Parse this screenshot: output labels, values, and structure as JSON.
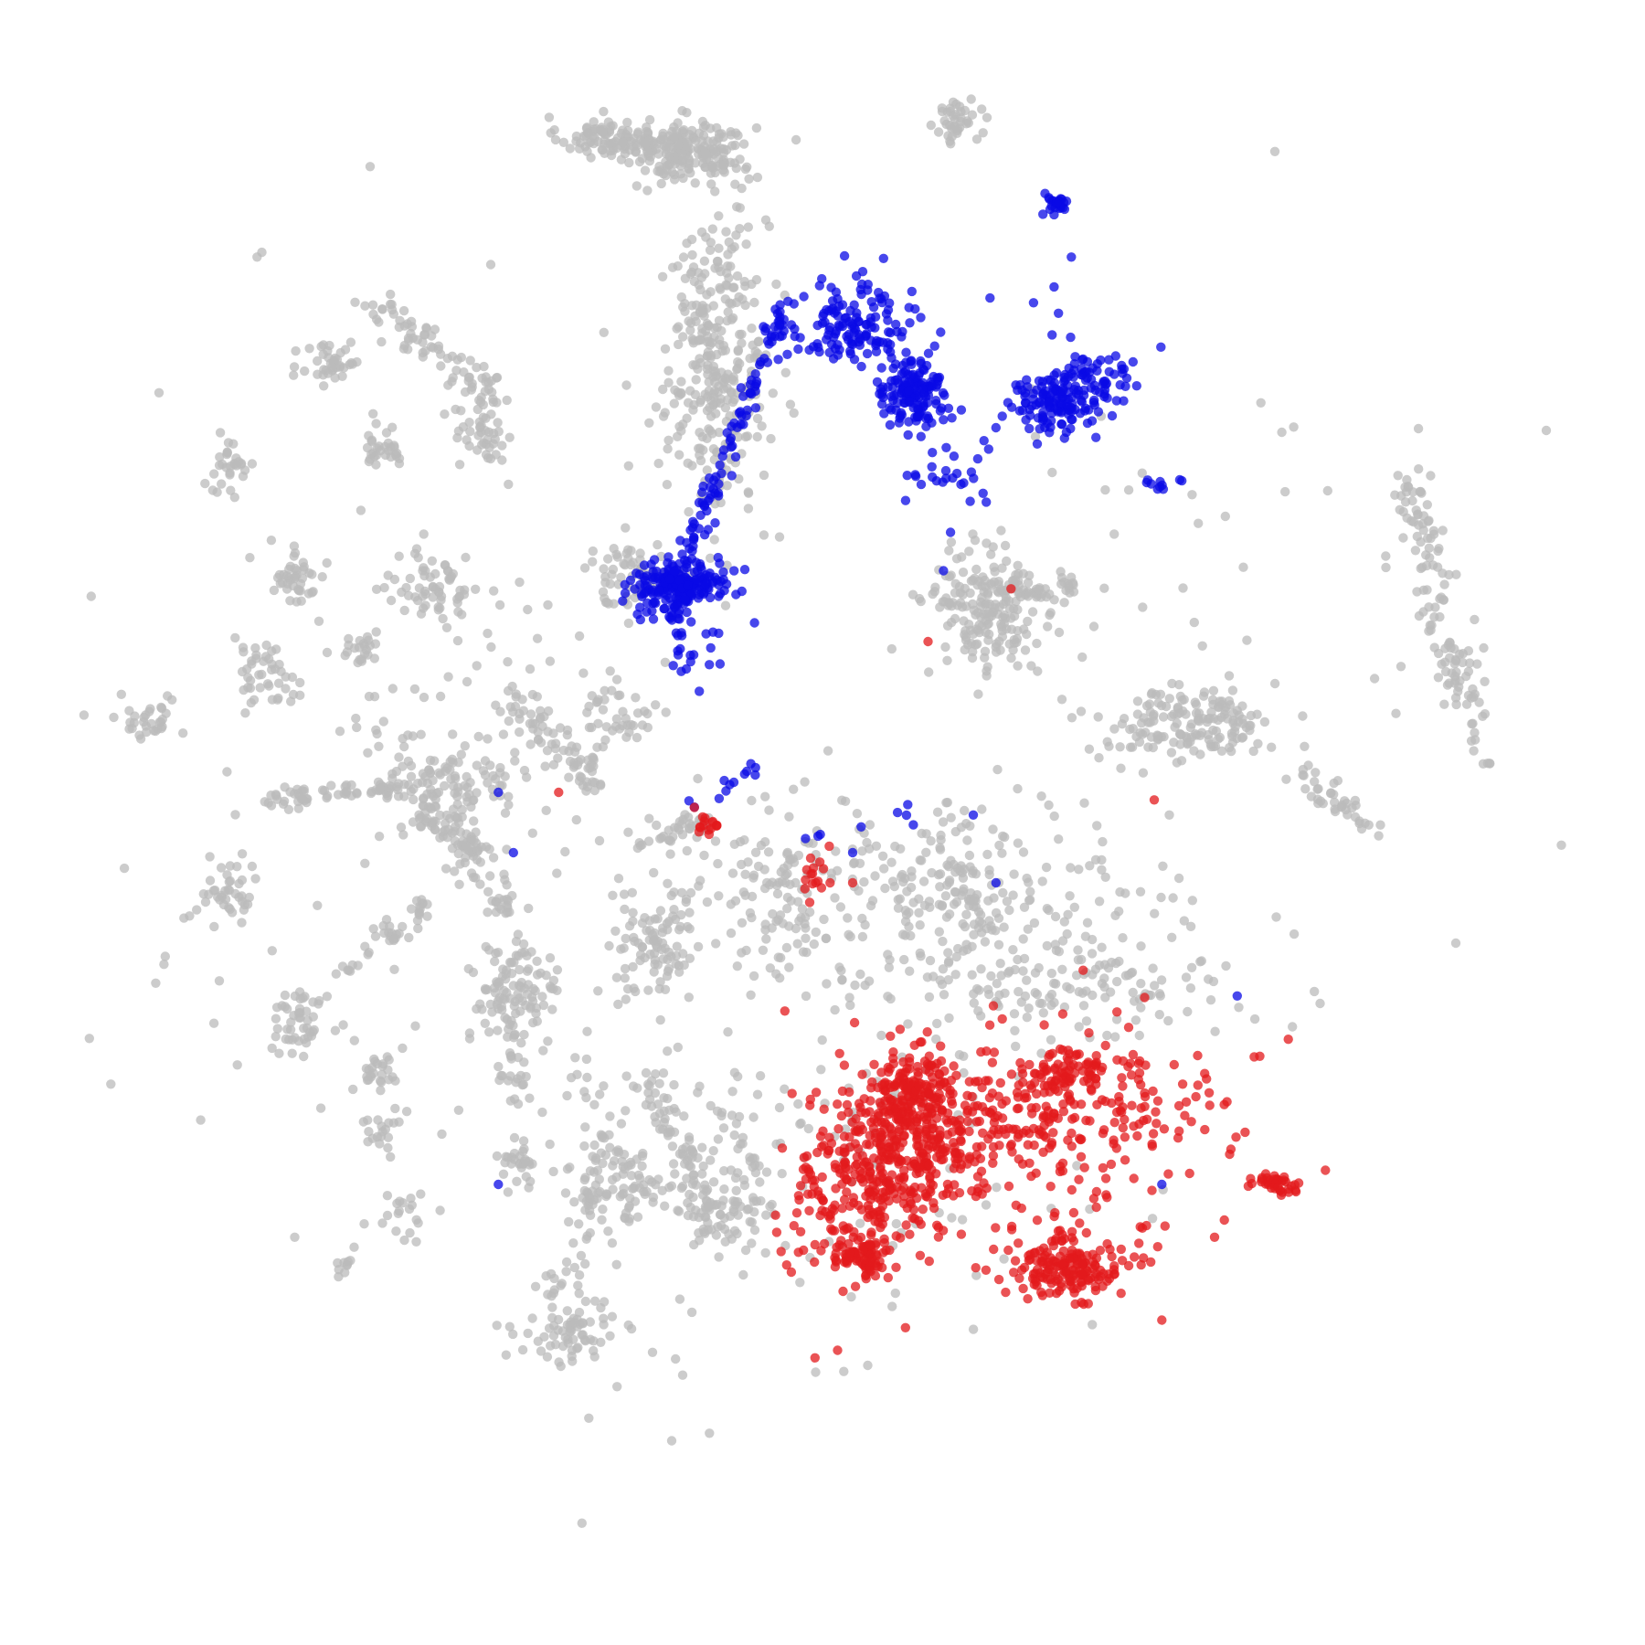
{
  "chart_data": {
    "type": "scatter",
    "title": "",
    "xlabel": "",
    "ylabel": "",
    "xlim": [
      -100,
      100
    ],
    "ylim": [
      -100,
      100
    ],
    "grid": false,
    "axes_visible": false,
    "legend": "none",
    "point_opacity": 0.75,
    "colors": {
      "background": "#bbbbbb",
      "red": "#e31a1c",
      "blue": "#0a0ae6"
    },
    "clusters": [
      {
        "group": "background",
        "x": -29,
        "y": 91,
        "sx": 3,
        "sy": 1.3,
        "n": 80
      },
      {
        "group": "background",
        "x": -18,
        "y": 89,
        "sx": 4.5,
        "sy": 2,
        "n": 180
      },
      {
        "group": "background",
        "x": 18,
        "y": 93,
        "sx": 1.5,
        "sy": 1.5,
        "n": 40
      },
      {
        "group": "background",
        "x": -65,
        "y": 61,
        "sx": 2,
        "sy": 2,
        "n": 40
      },
      {
        "group": "background",
        "x": -79,
        "y": 47,
        "sx": 1.8,
        "sy": 1.8,
        "n": 30
      },
      {
        "group": "background",
        "x": -58,
        "y": 50,
        "sx": 1.5,
        "sy": 1.5,
        "n": 30
      },
      {
        "group": "background",
        "x": -45,
        "y": 51,
        "sx": 2,
        "sy": 2,
        "n": 40
      },
      {
        "group": "background",
        "x": -70,
        "y": 33,
        "sx": 2.2,
        "sy": 2,
        "n": 40
      },
      {
        "group": "background",
        "x": -51,
        "y": 31,
        "sx": 2.8,
        "sy": 2.4,
        "n": 60
      },
      {
        "group": "background",
        "x": -25,
        "y": 33,
        "sx": 3.5,
        "sy": 2,
        "n": 60
      },
      {
        "group": "background",
        "x": -74,
        "y": 20,
        "sx": 2.2,
        "sy": 2,
        "n": 40
      },
      {
        "group": "background",
        "x": -61,
        "y": 22,
        "sx": 1.3,
        "sy": 1.3,
        "n": 20
      },
      {
        "group": "background",
        "x": -89,
        "y": 14,
        "sx": 1.8,
        "sy": 1.8,
        "n": 30
      },
      {
        "group": "background",
        "x": -27,
        "y": 14,
        "sx": 2.2,
        "sy": 2.2,
        "n": 40
      },
      {
        "group": "background",
        "x": -14,
        "y": 61,
        "sx": 3.5,
        "sy": 10,
        "n": 320
      },
      {
        "group": "background",
        "x": -50,
        "y": 5,
        "sx": 4,
        "sy": 3,
        "n": 110
      },
      {
        "group": "background",
        "x": -79,
        "y": -9,
        "sx": 2,
        "sy": 2,
        "n": 40
      },
      {
        "group": "background",
        "x": -42,
        "y": -10,
        "sx": 1.2,
        "sy": 1.2,
        "n": 20
      },
      {
        "group": "background",
        "x": -22,
        "y": -16,
        "sx": 3,
        "sy": 4,
        "n": 90
      },
      {
        "group": "background",
        "x": -41,
        "y": -23,
        "sx": 3,
        "sy": 3.5,
        "n": 110
      },
      {
        "group": "background",
        "x": -69,
        "y": -26,
        "sx": 2.2,
        "sy": 2.2,
        "n": 50
      },
      {
        "group": "background",
        "x": -40,
        "y": -45,
        "sx": 1.6,
        "sy": 1.6,
        "n": 30
      },
      {
        "group": "background",
        "x": -55,
        "y": -52,
        "sx": 1.4,
        "sy": 1.4,
        "n": 20
      },
      {
        "group": "background",
        "x": -31,
        "y": -50,
        "sx": 1.4,
        "sy": 1.4,
        "n": 20
      },
      {
        "group": "background",
        "x": -34,
        "y": -68,
        "sx": 3.5,
        "sy": 2,
        "n": 60
      },
      {
        "group": "background",
        "x": -26,
        "y": -48,
        "sx": 3,
        "sy": 2.5,
        "n": 60
      },
      {
        "group": "background",
        "x": -14,
        "y": -52,
        "sx": 3,
        "sy": 2.5,
        "n": 60
      },
      {
        "group": "background",
        "x": 22,
        "y": 28,
        "sx": 4,
        "sy": 5,
        "n": 180
      },
      {
        "group": "background",
        "x": 48,
        "y": 13,
        "sx": 6,
        "sy": 2.5,
        "n": 160
      },
      {
        "group": "background",
        "x": -17,
        "y": -0.5,
        "sx": 2,
        "sy": 1,
        "n": 25
      },
      {
        "group": "background",
        "x": -47,
        "y": -6,
        "sx": 1.2,
        "sy": 1.2,
        "n": 15
      },
      {
        "group": "background",
        "x": -7,
        "y": -8,
        "sx": 3.5,
        "sy": 6,
        "n": 60
      },
      {
        "group": "background",
        "x": 16,
        "y": -10,
        "sx": 14,
        "sy": 6,
        "n": 260
      },
      {
        "group": "background",
        "x": 34,
        "y": -21,
        "sx": 12,
        "sy": 4,
        "n": 140
      },
      {
        "group": "background",
        "x": -21,
        "y": -2,
        "sx": 1.5,
        "sy": 1.2,
        "n": 15
      },
      {
        "group": "background",
        "x": -59,
        "y": -33,
        "sx": 1.5,
        "sy": 1.5,
        "n": 25
      },
      {
        "group": "background",
        "x": -58,
        "y": -41,
        "sx": 1.5,
        "sy": 1.5,
        "n": 20
      },
      {
        "group": "background",
        "x": -64,
        "y": -58,
        "sx": 1,
        "sy": 1,
        "n": 10
      },
      {
        "group": "background",
        "x": -36,
        "y": -62,
        "sx": 1,
        "sy": 1,
        "n": 10
      },
      {
        "group": "background",
        "x": -2,
        "y": -40,
        "sx": 18,
        "sy": 18,
        "n": 120
      },
      {
        "group": "background",
        "x": -43,
        "y": 21,
        "sx": 14,
        "sy": 14,
        "n": 80
      },
      {
        "group": "background",
        "x": 50,
        "y": 30,
        "sx": 20,
        "sy": 16,
        "n": 40
      },
      {
        "group": "background",
        "x": -65,
        "y": 0,
        "sx": 30,
        "sy": 30,
        "n": 60
      }
    ],
    "lines": [
      {
        "group": "background",
        "from": [
          -24,
          91
        ],
        "to": [
          -13,
          88
        ],
        "n": 40,
        "sd": 1
      },
      {
        "group": "background",
        "from": [
          -59,
          68
        ],
        "to": [
          -43,
          56
        ],
        "n": 80,
        "sd": 1.2
      },
      {
        "group": "background",
        "from": [
          -41,
          17
        ],
        "to": [
          -30,
          5
        ],
        "n": 70,
        "sd": 1.2
      },
      {
        "group": "background",
        "from": [
          -74,
          3
        ],
        "to": [
          -55,
          5
        ],
        "n": 60,
        "sd": 0.6
      },
      {
        "group": "background",
        "from": [
          -53,
          1
        ],
        "to": [
          -44,
          -4
        ],
        "n": 60,
        "sd": 1.2
      },
      {
        "group": "background",
        "from": [
          -30,
          -32
        ],
        "to": [
          -30,
          -66
        ],
        "n": 60,
        "sd": 2.4
      },
      {
        "group": "background",
        "from": [
          -12,
          -35
        ],
        "to": [
          -9,
          -53
        ],
        "n": 40,
        "sd": 2.4
      },
      {
        "group": "background",
        "from": [
          -24,
          -33
        ],
        "to": [
          -14,
          -52
        ],
        "n": 70,
        "sd": 1.2
      },
      {
        "group": "background",
        "from": [
          -64,
          -21
        ],
        "to": [
          -52,
          -10
        ],
        "n": 40,
        "sd": 1
      },
      {
        "group": "background",
        "from": [
          -41,
          -30
        ],
        "to": [
          -41,
          -38
        ],
        "n": 20,
        "sd": 0.8
      },
      {
        "group": "background",
        "from": [
          13,
          30
        ],
        "to": [
          25,
          25
        ],
        "n": 15,
        "sd": 1
      },
      {
        "group": "background",
        "from": [
          25,
          31
        ],
        "to": [
          35,
          31
        ],
        "n": 35,
        "sd": 0.8
      },
      {
        "group": "background",
        "from": [
          77,
          47
        ],
        "to": [
          88,
          8
        ],
        "n": 130,
        "sd": 1.4
      },
      {
        "group": "background",
        "from": [
          63,
          6
        ],
        "to": [
          73,
          0
        ],
        "n": 40,
        "sd": 1
      },
      {
        "group": "background",
        "from": [
          16,
          -4
        ],
        "to": [
          21,
          -14
        ],
        "n": 30,
        "sd": 1
      },
      {
        "group": "background",
        "from": [
          -4,
          -4
        ],
        "to": [
          -3,
          -15
        ],
        "n": 20,
        "sd": 1.2
      },
      {
        "group": "background",
        "from": [
          8,
          -40
        ],
        "to": [
          -2,
          -38
        ],
        "n": 15,
        "sd": 2.6
      },
      {
        "group": "blue",
        "from": [
          -18,
          35
        ],
        "to": [
          -5,
          69
        ],
        "n": 100,
        "sd": 0.7
      },
      {
        "group": "blue",
        "from": [
          -6,
          67
        ],
        "to": [
          5,
          64
        ],
        "n": 10,
        "sd": 2
      },
      {
        "group": "blue",
        "from": [
          -8,
          8
        ],
        "to": [
          -17,
          2
        ],
        "n": 12,
        "sd": 0.6
      },
      {
        "group": "blue",
        "from": [
          10,
          46
        ],
        "to": [
          22,
          45
        ],
        "n": 10,
        "sd": 0.5
      },
      {
        "group": "blue",
        "from": [
          42,
          45
        ],
        "to": [
          48,
          45
        ],
        "n": 10,
        "sd": 0.5
      },
      {
        "group": "blue",
        "from": [
          -2,
          -1
        ],
        "to": [
          13,
          2
        ],
        "n": 8,
        "sd": 1
      },
      {
        "group": "blue",
        "from": [
          6,
          74
        ],
        "to": [
          19,
          42
        ],
        "n": 30,
        "sd": 1.2
      },
      {
        "group": "red",
        "from": [
          10,
          -38
        ],
        "to": [
          52,
          -38
        ],
        "n": 90,
        "sd": 3
      },
      {
        "group": "red",
        "from": [
          2,
          -40
        ],
        "to": [
          -2,
          -58
        ],
        "n": 50,
        "sd": 2.5
      },
      {
        "group": "red",
        "from": [
          44,
          -55
        ],
        "to": [
          27,
          -55
        ],
        "n": 40,
        "sd": 3
      }
    ],
    "blue_clusters": [
      {
        "x": -20,
        "y": 31,
        "sx": 2.5,
        "sy": 1.8,
        "n": 180
      },
      {
        "x": -15,
        "y": 32,
        "sx": 2,
        "sy": 1.2,
        "n": 40
      },
      {
        "x": 31,
        "y": 82,
        "sx": 0.8,
        "sy": 0.8,
        "n": 25
      },
      {
        "x": 12,
        "y": 57,
        "sx": 2.2,
        "sy": 2,
        "n": 140
      },
      {
        "x": 4,
        "y": 66,
        "sx": 4,
        "sy": 3,
        "n": 120
      },
      {
        "x": 31,
        "y": 56,
        "sx": 2.5,
        "sy": 2.2,
        "n": 120
      },
      {
        "x": 36,
        "y": 58,
        "sx": 3,
        "sy": 2,
        "n": 60
      },
      {
        "x": -17,
        "y": 24,
        "sx": 3,
        "sy": 3,
        "n": 30
      },
      {
        "x": 18,
        "y": 48,
        "sx": 6,
        "sy": 6,
        "n": 12
      },
      {
        "x": 32,
        "y": 62,
        "sx": 6,
        "sy": 6,
        "n": 12
      }
    ],
    "red_clusters": [
      {
        "x": 11,
        "y": -35,
        "sx": 2.5,
        "sy": 2.5,
        "n": 120
      },
      {
        "x": 33,
        "y": -33,
        "sx": 3,
        "sy": 1.5,
        "n": 70
      },
      {
        "x": 11,
        "y": -44,
        "sx": 5,
        "sy": 5,
        "n": 300
      },
      {
        "x": 27,
        "y": -39,
        "sx": 12,
        "sy": 6,
        "n": 240
      },
      {
        "x": 5,
        "y": -58,
        "sx": 1.8,
        "sy": 1.8,
        "n": 80
      },
      {
        "x": 32,
        "y": -59,
        "sx": 4,
        "sy": 2,
        "n": 150
      },
      {
        "x": 60,
        "y": -48,
        "sx": 1.6,
        "sy": 0.8,
        "n": 40
      },
      {
        "x": 5,
        "y": -49,
        "sx": 4,
        "sy": 5,
        "n": 80
      },
      {
        "x": -15,
        "y": -0.5,
        "sx": 0.8,
        "sy": 0.5,
        "n": 15
      },
      {
        "x": -1,
        "y": -6,
        "sx": 1.2,
        "sy": 2,
        "n": 15
      }
    ],
    "single_points": [
      {
        "group": "background",
        "x": -75,
        "y": 75
      },
      {
        "group": "background",
        "x": -62,
        "y": 69
      },
      {
        "group": "background",
        "x": -88,
        "y": 57
      },
      {
        "group": "background",
        "x": -97,
        "y": 30
      },
      {
        "group": "background",
        "x": -93,
        "y": 17
      },
      {
        "group": "background",
        "x": -29,
        "y": 65
      },
      {
        "group": "background",
        "x": -26,
        "y": 58
      },
      {
        "group": "background",
        "x": -23,
        "y": 53
      },
      {
        "group": "background",
        "x": -60,
        "y": 87
      },
      {
        "group": "background",
        "x": -44,
        "y": 74
      },
      {
        "group": "background",
        "x": -80,
        "y": -21
      },
      {
        "group": "background",
        "x": -70,
        "y": -55
      },
      {
        "group": "background",
        "x": -31,
        "y": -79
      },
      {
        "group": "background",
        "x": -20,
        "y": -82
      },
      {
        "group": "background",
        "x": -15,
        "y": -81
      },
      {
        "group": "background",
        "x": 6,
        "y": -72
      },
      {
        "group": "background",
        "x": 60,
        "y": 89
      },
      {
        "group": "background",
        "x": 67,
        "y": 44
      },
      {
        "group": "background",
        "x": 96,
        "y": 52
      },
      {
        "group": "background",
        "x": 84,
        "y": -16
      },
      {
        "group": "background",
        "x": 98,
        "y": -3
      },
      {
        "group": "background",
        "x": 66,
        "y": -24
      },
      {
        "group": "background",
        "x": 36,
        "y": 26
      },
      {
        "group": "background",
        "x": 20,
        "y": 25
      },
      {
        "group": "background",
        "x": 46,
        "y": 1
      },
      {
        "group": "background",
        "x": -67,
        "y": -11
      },
      {
        "group": "background",
        "x": -73,
        "y": -17
      },
      {
        "group": "background",
        "x": -3,
        "y": -61
      },
      {
        "group": "background",
        "x": -3,
        "y": -40
      },
      {
        "group": "blue",
        "x": 33,
        "y": 75
      },
      {
        "group": "blue",
        "x": -43,
        "y": 4
      },
      {
        "group": "blue",
        "x": -41,
        "y": -4
      },
      {
        "group": "blue",
        "x": -43,
        "y": -48
      },
      {
        "group": "blue",
        "x": 55,
        "y": -23
      },
      {
        "group": "blue",
        "x": 45,
        "y": -48
      },
      {
        "group": "blue",
        "x": 4,
        "y": -4
      },
      {
        "group": "blue",
        "x": 20,
        "y": 1
      },
      {
        "group": "blue",
        "x": 23,
        "y": -8
      },
      {
        "group": "red",
        "x": -35,
        "y": 4
      },
      {
        "group": "red",
        "x": -17,
        "y": 2
      },
      {
        "group": "red",
        "x": 44,
        "y": 3
      },
      {
        "group": "red",
        "x": 1,
        "y": -8
      },
      {
        "group": "red",
        "x": 4,
        "y": -8
      },
      {
        "group": "red",
        "x": -5,
        "y": -25
      },
      {
        "group": "red",
        "x": -1,
        "y": -56
      },
      {
        "group": "red",
        "x": 11,
        "y": -67
      },
      {
        "group": "red",
        "x": 58,
        "y": -31
      },
      {
        "group": "red",
        "x": 52,
        "y": -55
      },
      {
        "group": "red",
        "x": 45,
        "y": -66
      },
      {
        "group": "red",
        "x": 2,
        "y": -70
      },
      {
        "group": "red",
        "x": -1,
        "y": -71
      },
      {
        "group": "red",
        "x": 42,
        "y": -40
      },
      {
        "group": "red",
        "x": 54,
        "y": -44
      },
      {
        "group": "red",
        "x": 25,
        "y": 31
      },
      {
        "group": "red",
        "x": 14,
        "y": 24
      }
    ]
  }
}
